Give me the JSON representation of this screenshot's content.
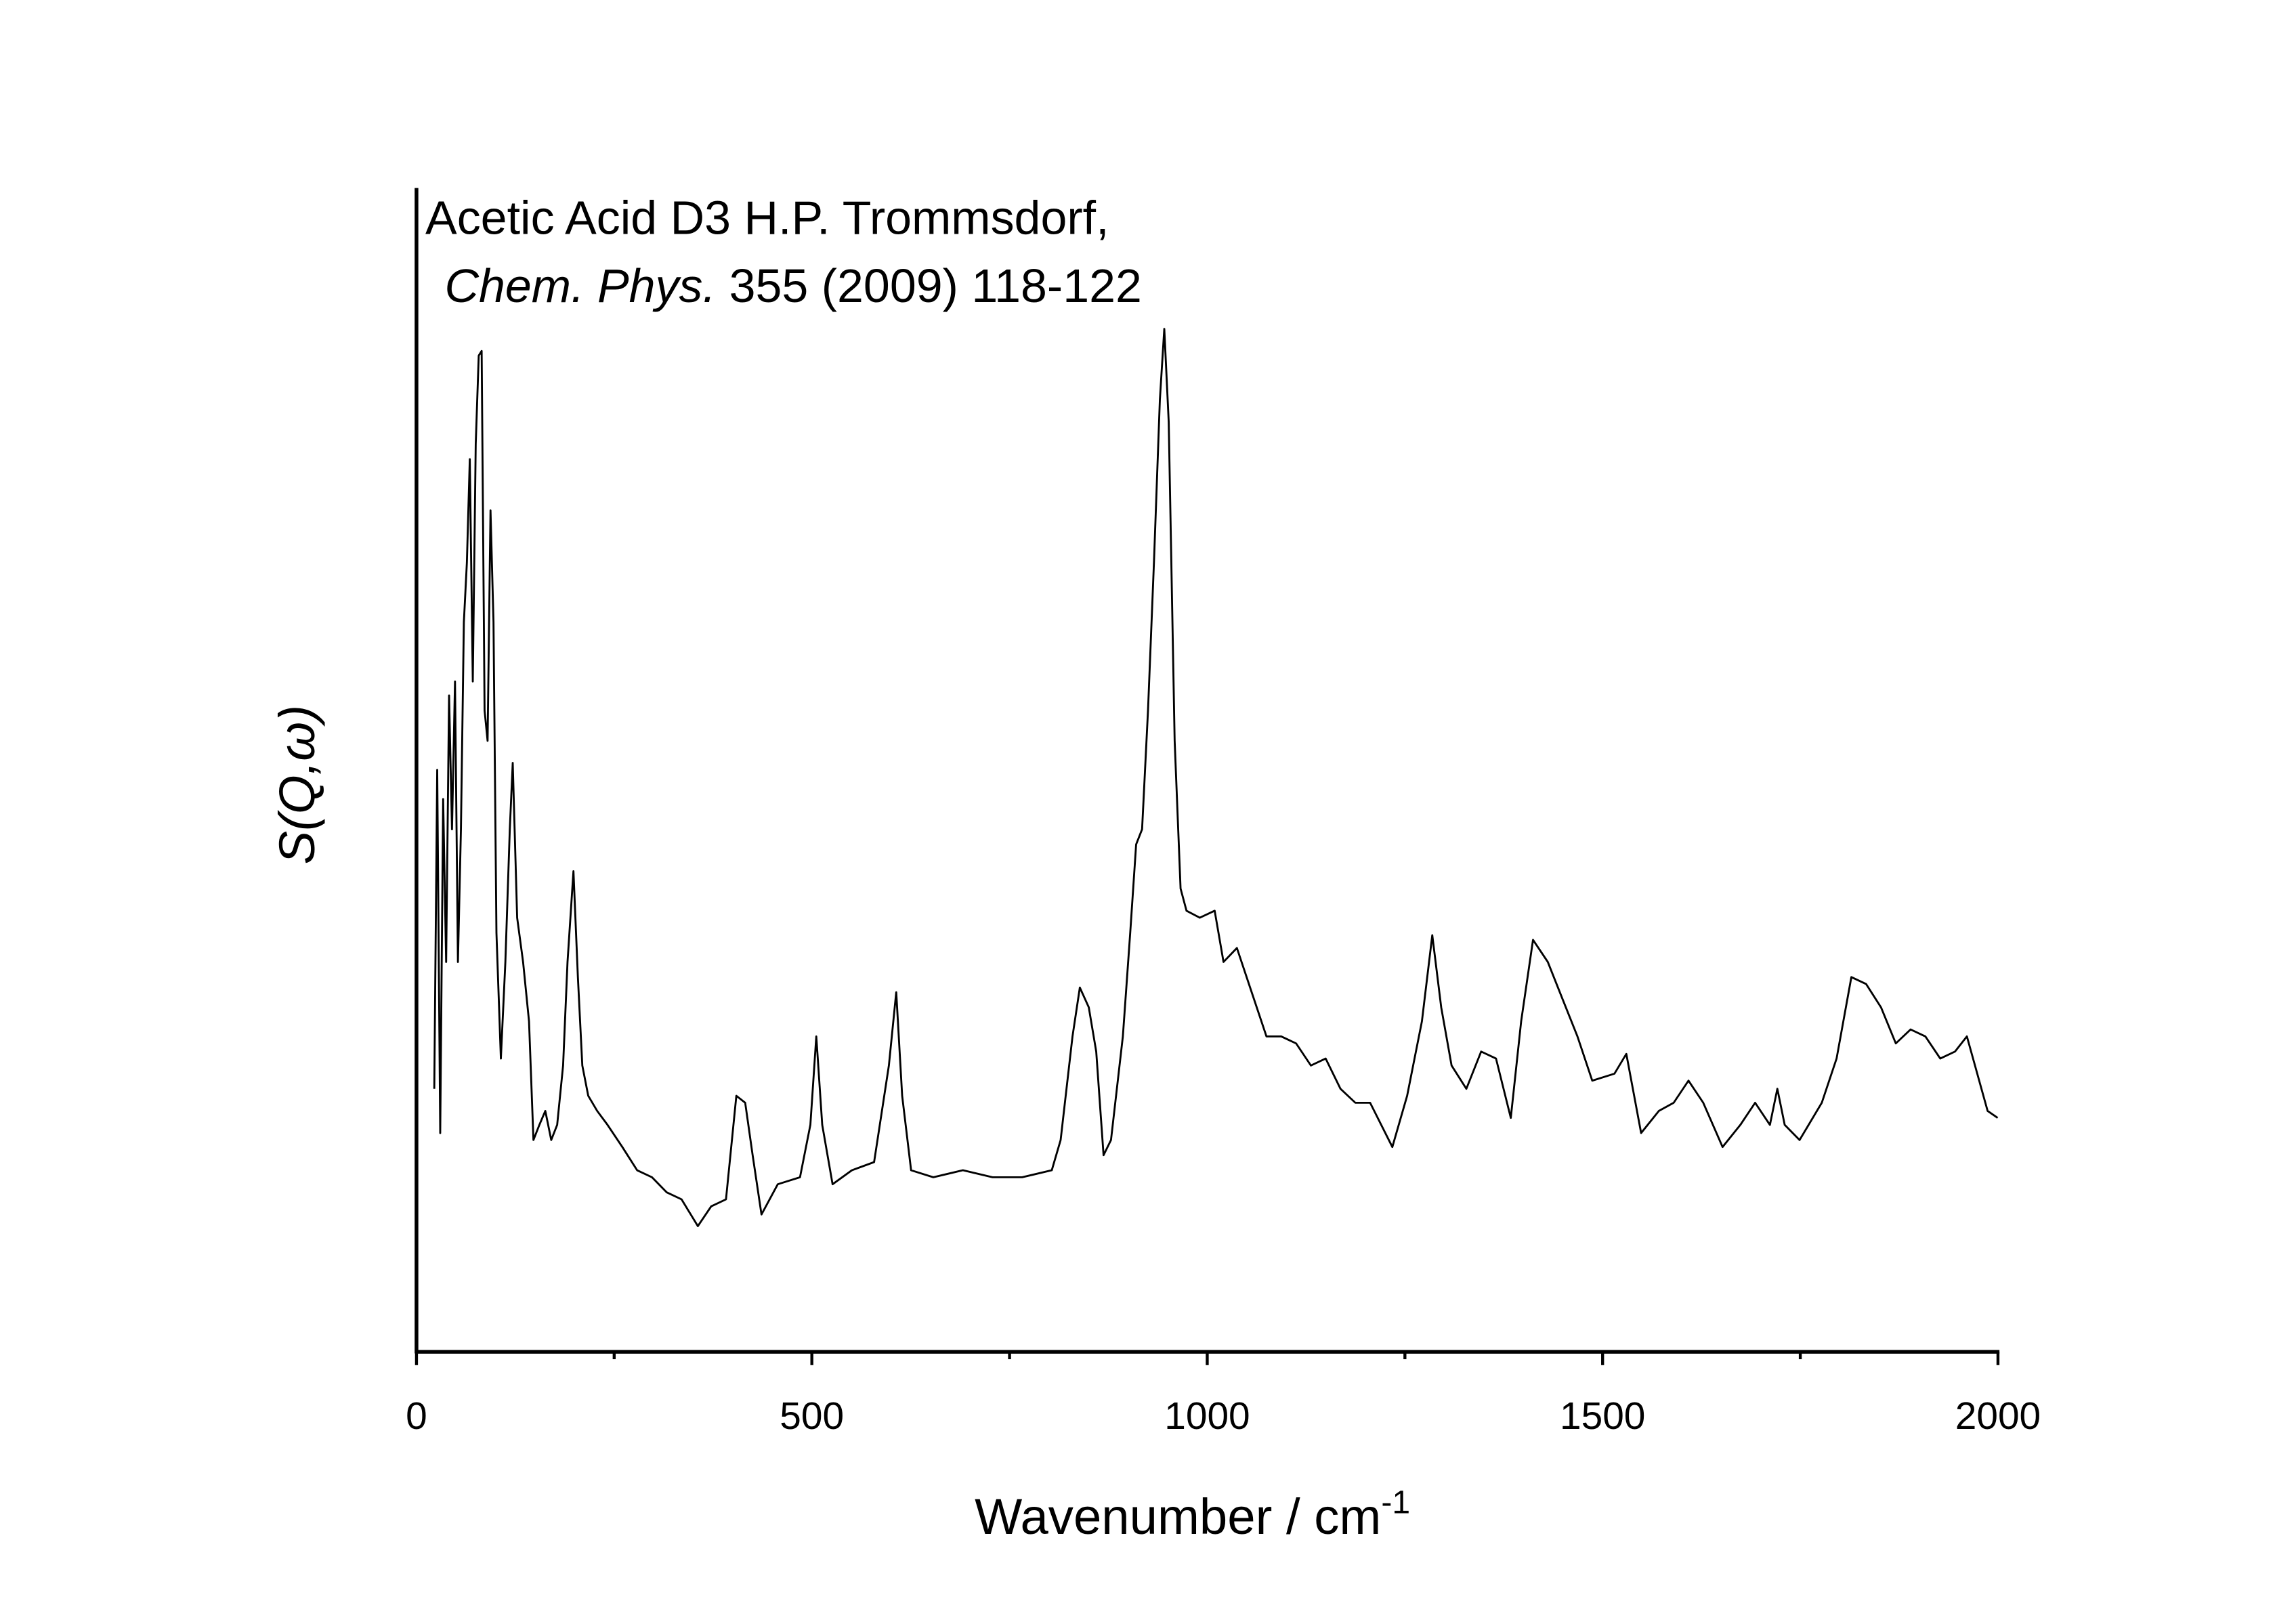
{
  "chart_data": {
    "type": "line",
    "title": "Acetic Acid D3 H.P. Trommsdorf,",
    "subtitle_italic": "Chem. Phys.",
    "subtitle": "355 (2009) 118-122",
    "xlabel": "Wavenumber / cm",
    "xlabel_superscript": "-1",
    "ylabel": "S(Q,ω)",
    "xlim": [
      0,
      2000
    ],
    "xticks": [
      0,
      500,
      1000,
      1500,
      2000
    ],
    "xminorticks": [
      250,
      750,
      1250,
      1750
    ],
    "ylim": [
      0,
      100
    ],
    "grid": false,
    "series": [
      {
        "name": "S(Q,ω)",
        "color": "#000000",
        "x": [
          22.5,
          26.2,
          30.0,
          33.7,
          37.5,
          41.2,
          44.9,
          48.7,
          52.4,
          56.2,
          59.9,
          63.7,
          67.4,
          71.2,
          74.9,
          78.7,
          82.4,
          86.1,
          89.9,
          93.6,
          97.4,
          101.1,
          106.7,
          112.4,
          118.0,
          121.7,
          127.3,
          134.8,
          142.3,
          147.9,
          155.4,
          162.9,
          170.4,
          177.9,
          185.4,
          191.0,
          198.5,
          204.1,
          209.7,
          217.2,
          228.5,
          241.6,
          260.3,
          279.0,
          297.8,
          316.5,
          335.2,
          355.8,
          372.7,
          391.4,
          404.5,
          415.7,
          425.1,
          436.3,
          456.9,
          485.0,
          498.1,
          505.6,
          513.1,
          526.2,
          550.6,
          578.7,
          597.4,
          606.7,
          614.2,
          625.5,
          653.6,
          691.0,
          728.5,
          765.9,
          803.4,
          814.6,
          829.6,
          838.9,
          850.2,
          859.6,
          868.9,
          878.3,
          893.3,
          902.6,
          910.1,
          917.6,
          925.1,
          932.6,
          940.1,
          945.7,
          951.3,
          958.8,
          966.3,
          973.8,
          990.6,
          1009.4,
          1020.6,
          1037.5,
          1056.2,
          1074.9,
          1093.6,
          1112.4,
          1131.1,
          1149.8,
          1168.5,
          1187.3,
          1206.0,
          1234.1,
          1252.8,
          1271.5,
          1284.6,
          1295.9,
          1309.0,
          1327.7,
          1346.4,
          1365.2,
          1383.9,
          1397.0,
          1412.0,
          1430.7,
          1449.4,
          1468.2,
          1486.9,
          1515.0,
          1530.0,
          1548.7,
          1571.2,
          1589.9,
          1608.6,
          1627.3,
          1651.7,
          1674.2,
          1692.9,
          1711.6,
          1721.0,
          1730.3,
          1749.1,
          1777.2,
          1795.9,
          1814.6,
          1833.3,
          1852.1,
          1870.8,
          1889.5,
          1908.2,
          1927.0,
          1945.7,
          1960.7,
          1973.8,
          1986.9,
          1999.6
        ],
        "values": [
          22.6,
          50.0,
          18.8,
          47.5,
          33.5,
          56.4,
          44.9,
          57.6,
          33.5,
          44.9,
          62.7,
          67.8,
          76.7,
          57.6,
          78.0,
          85.6,
          86.0,
          55.1,
          52.5,
          72.3,
          62.7,
          36.0,
          25.2,
          33.5,
          44.9,
          50.6,
          37.3,
          33.5,
          28.4,
          18.2,
          19.5,
          20.7,
          18.2,
          19.5,
          24.6,
          33.5,
          41.3,
          32.2,
          24.6,
          22.0,
          20.7,
          19.5,
          17.6,
          15.6,
          15.0,
          13.7,
          13.1,
          10.8,
          12.5,
          13.1,
          22.0,
          21.4,
          16.9,
          11.8,
          14.4,
          15.0,
          19.5,
          27.1,
          19.5,
          14.4,
          15.6,
          16.3,
          24.6,
          30.9,
          22.0,
          15.6,
          15.0,
          15.6,
          15.0,
          15.0,
          15.6,
          18.2,
          27.1,
          31.3,
          29.6,
          25.8,
          16.9,
          18.2,
          27.1,
          36.0,
          43.6,
          44.9,
          55.1,
          67.8,
          81.8,
          87.9,
          79.9,
          52.5,
          39.8,
          37.9,
          37.3,
          37.9,
          33.5,
          34.7,
          30.9,
          27.1,
          27.1,
          26.5,
          24.6,
          25.2,
          22.6,
          21.4,
          21.4,
          17.6,
          22.0,
          28.4,
          35.8,
          29.6,
          24.6,
          22.6,
          25.8,
          25.2,
          20.1,
          28.4,
          35.4,
          33.5,
          30.3,
          27.1,
          23.3,
          23.9,
          25.6,
          18.8,
          20.7,
          21.4,
          23.3,
          21.4,
          17.6,
          19.5,
          21.4,
          19.5,
          22.6,
          19.5,
          18.2,
          21.4,
          25.2,
          32.2,
          31.6,
          29.6,
          26.5,
          27.7,
          27.1,
          25.2,
          25.8,
          27.1,
          23.9,
          20.7,
          20.1
        ]
      }
    ]
  }
}
